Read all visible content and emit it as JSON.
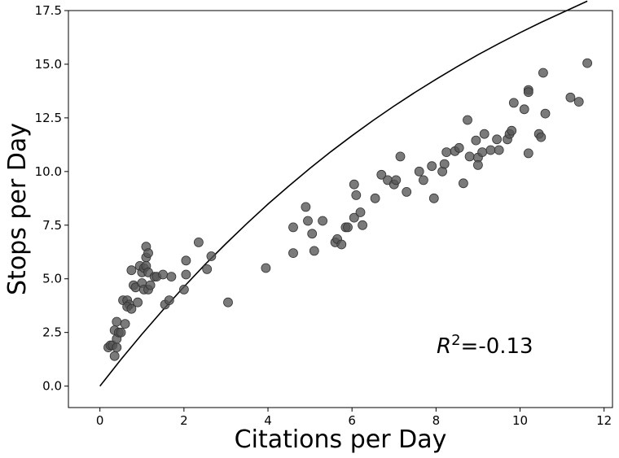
{
  "chart_data": {
    "type": "scatter",
    "title": "",
    "xlabel": "Citations per Day",
    "ylabel": "Stops per Day",
    "xlim": [
      -0.75,
      12.2
    ],
    "ylim": [
      -1.0,
      17.5
    ],
    "xticks": [
      0,
      2,
      4,
      6,
      8,
      10,
      12
    ],
    "xtick_labels": [
      "0",
      "2",
      "4",
      "6",
      "8",
      "10",
      "12"
    ],
    "yticks": [
      0.0,
      2.5,
      5.0,
      7.5,
      10.0,
      12.5,
      15.0,
      17.5
    ],
    "ytick_labels": [
      "0.0",
      "2.5",
      "5.0",
      "7.5",
      "10.0",
      "12.5",
      "15.0",
      "17.5"
    ],
    "grid": false,
    "annotation": {
      "prefix": "R",
      "superscript": "2",
      "suffix": "=-0.13",
      "x": 8.0,
      "y": 1.6
    },
    "marker_color": "#555555",
    "line_color": "#000000",
    "series": [
      {
        "name": "observations",
        "type": "scatter",
        "points": [
          [
            0.2,
            1.8
          ],
          [
            0.25,
            1.9
          ],
          [
            0.3,
            1.9
          ],
          [
            0.35,
            1.4
          ],
          [
            0.4,
            1.8
          ],
          [
            0.4,
            2.2
          ],
          [
            0.35,
            2.6
          ],
          [
            0.4,
            3.0
          ],
          [
            0.45,
            2.5
          ],
          [
            0.5,
            2.5
          ],
          [
            0.55,
            4.0
          ],
          [
            0.6,
            2.9
          ],
          [
            0.65,
            4.0
          ],
          [
            0.7,
            3.8
          ],
          [
            0.65,
            3.7
          ],
          [
            0.75,
            3.6
          ],
          [
            0.75,
            5.4
          ],
          [
            0.8,
            4.7
          ],
          [
            0.85,
            4.6
          ],
          [
            0.9,
            3.9
          ],
          [
            0.95,
            5.6
          ],
          [
            1.0,
            4.8
          ],
          [
            1.0,
            5.3
          ],
          [
            1.05,
            5.5
          ],
          [
            1.05,
            4.5
          ],
          [
            1.1,
            6.5
          ],
          [
            1.1,
            6.0
          ],
          [
            1.1,
            5.6
          ],
          [
            1.15,
            5.3
          ],
          [
            1.15,
            4.5
          ],
          [
            1.15,
            6.2
          ],
          [
            1.2,
            4.7
          ],
          [
            1.3,
            5.1
          ],
          [
            1.35,
            5.1
          ],
          [
            1.5,
            5.2
          ],
          [
            1.55,
            3.8
          ],
          [
            1.65,
            4.0
          ],
          [
            1.7,
            5.1
          ],
          [
            2.0,
            4.5
          ],
          [
            2.05,
            5.2
          ],
          [
            2.05,
            5.85
          ],
          [
            2.35,
            6.7
          ],
          [
            2.55,
            5.45
          ],
          [
            2.65,
            6.05
          ],
          [
            3.05,
            3.9
          ],
          [
            3.95,
            5.5
          ],
          [
            4.6,
            7.4
          ],
          [
            4.6,
            6.2
          ],
          [
            4.9,
            8.35
          ],
          [
            4.95,
            7.7
          ],
          [
            5.05,
            7.1
          ],
          [
            5.1,
            6.3
          ],
          [
            5.3,
            7.7
          ],
          [
            5.6,
            6.7
          ],
          [
            5.65,
            6.85
          ],
          [
            5.75,
            6.6
          ],
          [
            5.85,
            7.4
          ],
          [
            5.9,
            7.4
          ],
          [
            6.05,
            9.4
          ],
          [
            6.05,
            7.85
          ],
          [
            6.1,
            8.9
          ],
          [
            6.2,
            8.1
          ],
          [
            6.25,
            7.5
          ],
          [
            6.55,
            8.75
          ],
          [
            6.7,
            9.85
          ],
          [
            6.85,
            9.6
          ],
          [
            7.0,
            9.4
          ],
          [
            7.05,
            9.6
          ],
          [
            7.15,
            10.7
          ],
          [
            7.3,
            9.05
          ],
          [
            7.6,
            10.0
          ],
          [
            7.7,
            9.6
          ],
          [
            7.9,
            10.25
          ],
          [
            7.95,
            8.75
          ],
          [
            8.15,
            10.0
          ],
          [
            8.2,
            10.35
          ],
          [
            8.25,
            10.9
          ],
          [
            8.45,
            10.95
          ],
          [
            8.55,
            11.1
          ],
          [
            8.65,
            9.45
          ],
          [
            8.75,
            12.4
          ],
          [
            8.8,
            10.7
          ],
          [
            8.95,
            11.45
          ],
          [
            9.0,
            10.65
          ],
          [
            9.0,
            10.3
          ],
          [
            9.1,
            10.9
          ],
          [
            9.15,
            11.75
          ],
          [
            9.3,
            11.0
          ],
          [
            9.45,
            11.5
          ],
          [
            9.5,
            11.0
          ],
          [
            9.7,
            11.5
          ],
          [
            9.75,
            11.75
          ],
          [
            9.8,
            11.9
          ],
          [
            9.85,
            13.2
          ],
          [
            10.1,
            12.9
          ],
          [
            10.2,
            13.8
          ],
          [
            10.2,
            13.7
          ],
          [
            10.2,
            10.85
          ],
          [
            10.45,
            11.75
          ],
          [
            10.5,
            11.6
          ],
          [
            10.55,
            14.6
          ],
          [
            10.6,
            12.7
          ],
          [
            11.2,
            13.45
          ],
          [
            11.4,
            13.25
          ],
          [
            11.6,
            15.05
          ]
        ]
      },
      {
        "name": "fit",
        "type": "line",
        "x": [
          0,
          0.5,
          1,
          1.5,
          2,
          2.5,
          3,
          3.5,
          4,
          4.5,
          5,
          5.5,
          6,
          6.5,
          7,
          7.5,
          8,
          8.5,
          9,
          9.5,
          10,
          10.5,
          11,
          11.6
        ],
        "y": [
          0,
          1.24,
          2.42,
          3.55,
          4.63,
          5.66,
          6.64,
          7.58,
          8.48,
          9.33,
          10.15,
          10.93,
          11.67,
          12.38,
          13.05,
          13.69,
          14.3,
          14.88,
          15.44,
          15.97,
          16.47,
          16.95,
          17.4,
          17.94
        ]
      }
    ]
  }
}
